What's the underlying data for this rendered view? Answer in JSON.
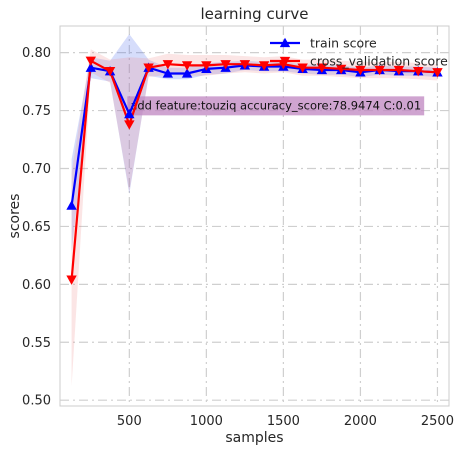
{
  "chart_data": {
    "type": "line",
    "title": "learning curve",
    "xlabel": "samples",
    "ylabel": "scores",
    "xlim": [
      50,
      2575
    ],
    "ylim": [
      0.495,
      0.823
    ],
    "xticks": [
      500,
      1000,
      1500,
      2000,
      2500
    ],
    "yticks": [
      0.5,
      0.55,
      0.6,
      0.65,
      0.7,
      0.75,
      0.8
    ],
    "ytick_labels": [
      "0.50",
      "0.55",
      "0.60",
      "0.65",
      "0.70",
      "0.75",
      "0.80"
    ],
    "grid": true,
    "legend_position": "top-right",
    "x": [
      125,
      250,
      375,
      500,
      625,
      750,
      875,
      1000,
      1125,
      1250,
      1375,
      1500,
      1625,
      1750,
      1875,
      2000,
      2125,
      2250,
      2375,
      2500
    ],
    "series": [
      {
        "name": "train score",
        "color": "#0000ff",
        "marker": "triangle-up",
        "values": [
          0.668,
          0.787,
          0.784,
          0.747,
          0.787,
          0.782,
          0.782,
          0.786,
          0.787,
          0.789,
          0.788,
          0.788,
          0.786,
          0.785,
          0.785,
          0.783,
          0.785,
          0.784,
          0.784,
          0.783
        ],
        "band_low": [
          0.628,
          0.778,
          0.775,
          0.678,
          0.78,
          0.777,
          0.777,
          0.781,
          0.782,
          0.785,
          0.784,
          0.784,
          0.782,
          0.781,
          0.781,
          0.779,
          0.781,
          0.78,
          0.78,
          0.779
        ],
        "band_high": [
          0.708,
          0.796,
          0.793,
          0.816,
          0.794,
          0.787,
          0.787,
          0.791,
          0.792,
          0.793,
          0.792,
          0.792,
          0.79,
          0.789,
          0.789,
          0.787,
          0.789,
          0.788,
          0.788,
          0.787
        ],
        "band_color": "#4466ee"
      },
      {
        "name": "cross_validation score",
        "color": "#ff0000",
        "marker": "triangle-down",
        "values": [
          0.604,
          0.793,
          0.784,
          0.738,
          0.787,
          0.79,
          0.789,
          0.789,
          0.79,
          0.79,
          0.789,
          0.79,
          0.787,
          0.787,
          0.786,
          0.785,
          0.785,
          0.785,
          0.784,
          0.783
        ],
        "band_low": [
          0.512,
          0.783,
          0.774,
          0.68,
          0.779,
          0.781,
          0.78,
          0.78,
          0.782,
          0.783,
          0.782,
          0.783,
          0.78,
          0.78,
          0.779,
          0.778,
          0.778,
          0.778,
          0.777,
          0.776
        ],
        "band_high": [
          0.696,
          0.803,
          0.794,
          0.796,
          0.795,
          0.799,
          0.798,
          0.798,
          0.798,
          0.797,
          0.796,
          0.797,
          0.794,
          0.794,
          0.793,
          0.792,
          0.792,
          0.792,
          0.791,
          0.79
        ],
        "band_color": "#ee8888"
      }
    ],
    "annotation": {
      "text": "add feature:touziq accuracy_score:78.9474 C:0.01",
      "x": 500,
      "y": 0.7545,
      "box_color": "#bf86c0"
    }
  }
}
